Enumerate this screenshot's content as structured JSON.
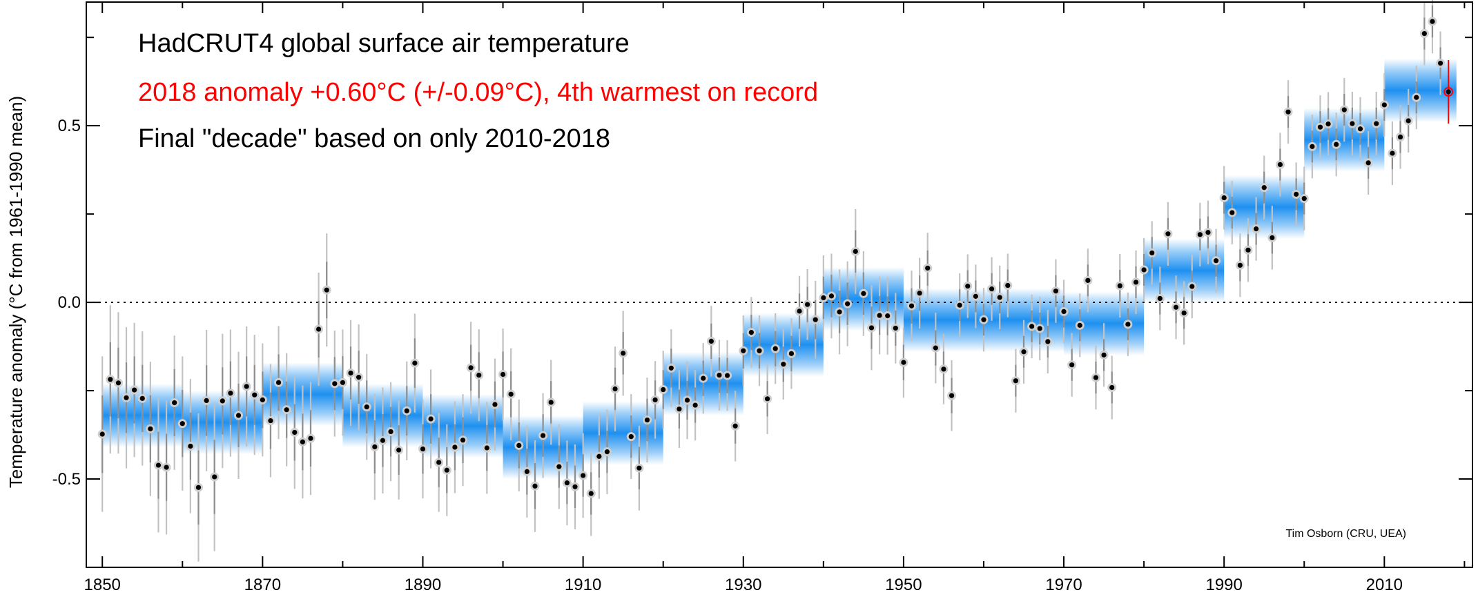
{
  "chart_data": {
    "type": "scatter",
    "title_lines": [
      {
        "text": "HadCRUT4 global surface air temperature",
        "color": "#000000"
      },
      {
        "text": "2018 anomaly +0.60°C (+/-0.09°C), 4th warmest on record",
        "color": "#ff0000"
      },
      {
        "text": "Final \"decade\" based on only 2010-2018",
        "color": "#000000"
      }
    ],
    "ylabel": "Temperature anomaly (°C from 1961-1990 mean)",
    "xlabel": "",
    "credit": "Tim Osborn (CRU, UEA)",
    "xlim": [
      1848,
      2021
    ],
    "ylim": [
      -0.75,
      0.85
    ],
    "x_ticks": [
      1850,
      1870,
      1890,
      1910,
      1930,
      1950,
      1970,
      1990,
      2010
    ],
    "y_ticks": [
      -0.5,
      0.0,
      0.5
    ],
    "y_tick_labels": [
      "-0.5",
      "0.0",
      "0.5"
    ],
    "reference_line": {
      "y": 0.0,
      "style": "dotted"
    },
    "colors": {
      "decade_band": "#1e90f0",
      "points": "#000000",
      "error_bars": "#a8a8a8",
      "highlight": "#ff0000"
    },
    "years_start": 1850,
    "annual_anomalies": [
      -0.373,
      -0.218,
      -0.228,
      -0.27,
      -0.248,
      -0.272,
      -0.358,
      -0.461,
      -0.467,
      -0.284,
      -0.343,
      -0.407,
      -0.524,
      -0.278,
      -0.494,
      -0.279,
      -0.257,
      -0.32,
      -0.238,
      -0.262,
      -0.276,
      -0.335,
      -0.227,
      -0.304,
      -0.368,
      -0.395,
      -0.385,
      -0.076,
      0.035,
      -0.23,
      -0.227,
      -0.2,
      -0.212,
      -0.296,
      -0.409,
      -0.391,
      -0.366,
      -0.418,
      -0.307,
      -0.172,
      -0.415,
      -0.33,
      -0.453,
      -0.475,
      -0.41,
      -0.39,
      -0.185,
      -0.206,
      -0.412,
      -0.289,
      -0.204,
      -0.26,
      -0.405,
      -0.479,
      -0.52,
      -0.377,
      -0.283,
      -0.465,
      -0.511,
      -0.522,
      -0.49,
      -0.541,
      -0.436,
      -0.423,
      -0.245,
      -0.144,
      -0.38,
      -0.469,
      -0.333,
      -0.276,
      -0.247,
      -0.186,
      -0.302,
      -0.277,
      -0.291,
      -0.215,
      -0.11,
      -0.206,
      -0.207,
      -0.35,
      -0.137,
      -0.085,
      -0.137,
      -0.273,
      -0.131,
      -0.175,
      -0.145,
      -0.025,
      -0.006,
      -0.049,
      0.013,
      0.018,
      -0.027,
      -0.004,
      0.144,
      0.025,
      -0.072,
      -0.037,
      -0.038,
      -0.073,
      -0.17,
      -0.01,
      0.026,
      0.097,
      -0.129,
      -0.189,
      -0.264,
      -0.008,
      0.046,
      0.017,
      -0.049,
      0.038,
      0.014,
      0.048,
      -0.222,
      -0.14,
      -0.068,
      -0.074,
      -0.111,
      0.032,
      -0.026,
      -0.177,
      -0.065,
      0.062,
      -0.213,
      -0.149,
      -0.241,
      0.047,
      -0.062,
      0.057,
      0.092,
      0.14,
      0.011,
      0.194,
      -0.014,
      -0.03,
      0.045,
      0.192,
      0.198,
      0.118,
      0.296,
      0.254,
      0.105,
      0.148,
      0.208,
      0.325,
      0.183,
      0.39,
      0.539,
      0.306,
      0.294,
      0.441,
      0.496,
      0.505,
      0.447,
      0.545,
      0.506,
      0.491,
      0.395,
      0.506,
      0.559,
      0.422,
      0.468,
      0.514,
      0.58,
      0.761,
      0.795,
      0.677,
      0.596
    ],
    "uncertainty_95": [
      0.22,
      0.21,
      0.2,
      0.2,
      0.19,
      0.19,
      0.19,
      0.19,
      0.19,
      0.19,
      0.19,
      0.19,
      0.21,
      0.2,
      0.21,
      0.19,
      0.18,
      0.18,
      0.17,
      0.17,
      0.16,
      0.16,
      0.16,
      0.16,
      0.16,
      0.16,
      0.16,
      0.16,
      0.16,
      0.15,
      0.15,
      0.15,
      0.15,
      0.15,
      0.15,
      0.15,
      0.14,
      0.14,
      0.14,
      0.14,
      0.14,
      0.14,
      0.14,
      0.13,
      0.13,
      0.13,
      0.13,
      0.13,
      0.13,
      0.13,
      0.13,
      0.13,
      0.13,
      0.13,
      0.13,
      0.12,
      0.12,
      0.12,
      0.12,
      0.12,
      0.12,
      0.12,
      0.12,
      0.12,
      0.12,
      0.12,
      0.12,
      0.12,
      0.12,
      0.11,
      0.11,
      0.11,
      0.11,
      0.11,
      0.1,
      0.1,
      0.1,
      0.1,
      0.1,
      0.1,
      0.1,
      0.1,
      0.1,
      0.1,
      0.1,
      0.1,
      0.1,
      0.1,
      0.1,
      0.11,
      0.12,
      0.12,
      0.12,
      0.12,
      0.12,
      0.12,
      0.12,
      0.11,
      0.11,
      0.1,
      0.1,
      0.1,
      0.1,
      0.1,
      0.1,
      0.1,
      0.1,
      0.09,
      0.09,
      0.09,
      0.09,
      0.09,
      0.09,
      0.09,
      0.09,
      0.09,
      0.09,
      0.09,
      0.09,
      0.09,
      0.09,
      0.09,
      0.09,
      0.09,
      0.09,
      0.09,
      0.09,
      0.09,
      0.09,
      0.09,
      0.09,
      0.09,
      0.09,
      0.09,
      0.09,
      0.09,
      0.09,
      0.09,
      0.09,
      0.09,
      0.09,
      0.09,
      0.09,
      0.09,
      0.09,
      0.09,
      0.09,
      0.09,
      0.09,
      0.09,
      0.09,
      0.09,
      0.09,
      0.09,
      0.09,
      0.09,
      0.09,
      0.09,
      0.09,
      0.09,
      0.09,
      0.09,
      0.09,
      0.09,
      0.09,
      0.09,
      0.09,
      0.09,
      0.09
    ],
    "decadal_means": [
      {
        "start": 1850,
        "end": 1860,
        "value": -0.32
      },
      {
        "start": 1860,
        "end": 1870,
        "value": -0.34
      },
      {
        "start": 1870,
        "end": 1880,
        "value": -0.26
      },
      {
        "start": 1880,
        "end": 1890,
        "value": -0.32
      },
      {
        "start": 1890,
        "end": 1900,
        "value": -0.35
      },
      {
        "start": 1900,
        "end": 1910,
        "value": -0.41
      },
      {
        "start": 1910,
        "end": 1920,
        "value": -0.37
      },
      {
        "start": 1920,
        "end": 1930,
        "value": -0.23
      },
      {
        "start": 1930,
        "end": 1940,
        "value": -0.12
      },
      {
        "start": 1940,
        "end": 1950,
        "value": 0.01
      },
      {
        "start": 1950,
        "end": 1970,
        "value": -0.05
      },
      {
        "start": 1970,
        "end": 1980,
        "value": -0.06
      },
      {
        "start": 1980,
        "end": 1990,
        "value": 0.09
      },
      {
        "start": 1990,
        "end": 2000,
        "value": 0.27
      },
      {
        "start": 2000,
        "end": 2010,
        "value": 0.46
      },
      {
        "start": 2010,
        "end": 2019,
        "value": 0.6
      }
    ],
    "highlight_year": 2018
  }
}
